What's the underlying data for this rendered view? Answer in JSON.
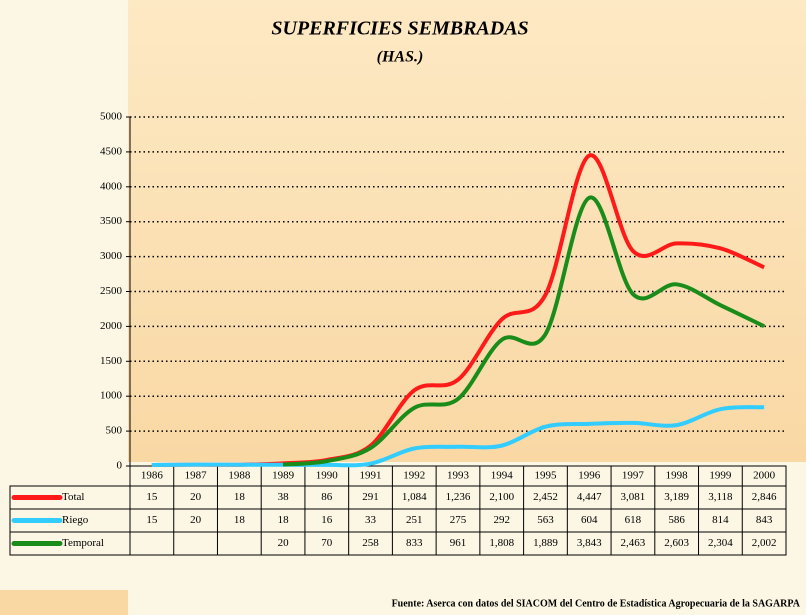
{
  "chart_data": {
    "type": "line",
    "title": "SUPERFICIES SEMBRADAS",
    "subtitle": "(HAS.)",
    "source": "Fuente: Aserca con datos del SIACOM del Centro de Estadística Agropecuaria de la SAGARPA",
    "categories": [
      "1986",
      "1987",
      "1988",
      "1989",
      "1990",
      "1991",
      "1992",
      "1993",
      "1994",
      "1995",
      "1996",
      "1997",
      "1998",
      "1999",
      "2000"
    ],
    "series": [
      {
        "name": "Total",
        "color": "#ff1a1a",
        "values": [
          15,
          20,
          18,
          38,
          86,
          291,
          1084,
          1236,
          2100,
          2452,
          4447,
          3081,
          3189,
          3118,
          2846
        ],
        "value_labels": [
          "15",
          "20",
          "18",
          "38",
          "86",
          "291",
          "1,084",
          "1,236",
          "2,100",
          "2,452",
          "4,447",
          "3,081",
          "3,189",
          "3,118",
          "2,846"
        ]
      },
      {
        "name": "Riego",
        "color": "#33ccff",
        "values": [
          15,
          20,
          18,
          18,
          16,
          33,
          251,
          275,
          292,
          563,
          604,
          618,
          586,
          814,
          843
        ],
        "value_labels": [
          "15",
          "20",
          "18",
          "18",
          "16",
          "33",
          "251",
          "275",
          "292",
          "563",
          "604",
          "618",
          "586",
          "814",
          "843"
        ]
      },
      {
        "name": "Temporal",
        "color": "#1a8c1a",
        "values": [
          null,
          null,
          null,
          20,
          70,
          258,
          833,
          961,
          1808,
          1889,
          3843,
          2463,
          2603,
          2304,
          2002
        ],
        "value_labels": [
          null,
          null,
          null,
          "20",
          "70",
          "258",
          "833",
          "961",
          "1,808",
          "1,889",
          "3,843",
          "2,463",
          "2,603",
          "2,304",
          "2,002"
        ]
      }
    ],
    "ylim": [
      0,
      5000
    ],
    "yticks": [
      0,
      500,
      1000,
      1500,
      2000,
      2500,
      3000,
      3500,
      4000,
      4500,
      5000
    ],
    "grid": true
  }
}
